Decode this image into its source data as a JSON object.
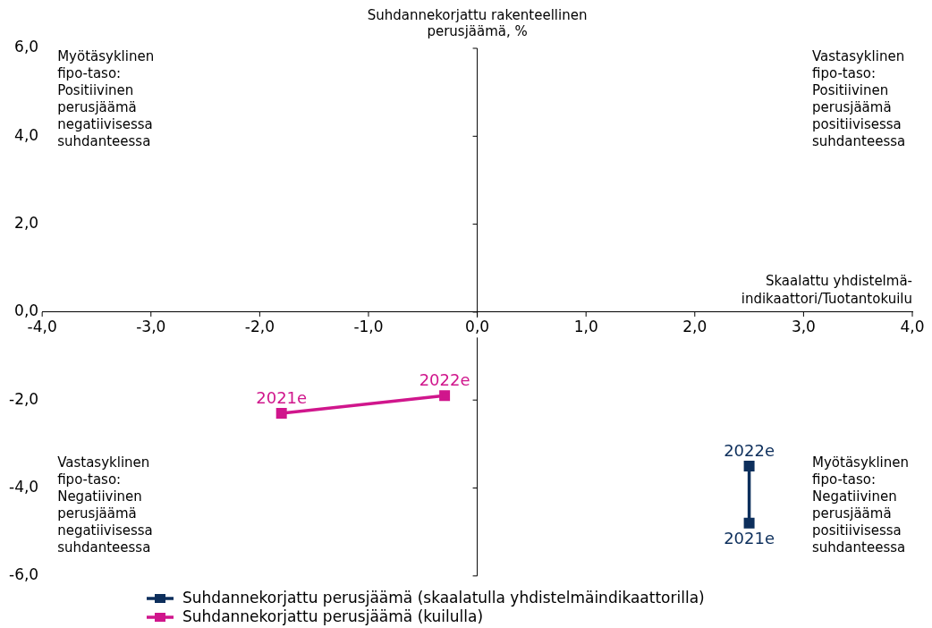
{
  "chart_data": {
    "type": "line",
    "xlabel": "Skaalattu yhdistelmä-indikaattori/Tuotantokuilu",
    "ylabel": "Suhdannekorjattu rakenteellinen perusjäämä, %",
    "xlim": [
      -4,
      4
    ],
    "xticks": [
      {
        "value": -4,
        "label": "-4,0"
      },
      {
        "value": -3,
        "label": "-3,0"
      },
      {
        "value": -2,
        "label": "-2,0"
      },
      {
        "value": -1,
        "label": "-1,0"
      },
      {
        "value": 0,
        "label": "0,0"
      },
      {
        "value": 1,
        "label": "1,0"
      },
      {
        "value": 2,
        "label": "2,0"
      },
      {
        "value": 3,
        "label": "3,0"
      },
      {
        "value": 4,
        "label": "4,0"
      }
    ],
    "ylim": [
      -6,
      6
    ],
    "yticks": [
      {
        "value": -6,
        "label": "-6,0"
      },
      {
        "value": -4,
        "label": "-4,0"
      },
      {
        "value": -2,
        "label": "-2,0"
      },
      {
        "value": 0,
        "label": "0,0"
      },
      {
        "value": 2,
        "label": "2,0"
      },
      {
        "value": 4,
        "label": "4,0"
      },
      {
        "value": 6,
        "label": "6,0"
      }
    ],
    "legend": "bottom",
    "marker": "square",
    "line_style": "solid",
    "series": [
      {
        "name": "Suhdannekorjattu perusjäämä (skaalatulla yhdistelmäindikaattorilla)",
        "color": "#0d2f5c",
        "x": [
          2.5,
          2.5
        ],
        "values": [
          -4.8,
          -3.5
        ]
      },
      {
        "name": "Suhdannekorjattu perusjäämä (kuilulla)",
        "color": "#d0168c",
        "x": [
          -1.8,
          -0.3
        ],
        "values": [
          -2.3,
          -1.9
        ]
      }
    ],
    "annotations": [
      {
        "text": "2021e",
        "x": 2.5,
        "y": -4.8
      },
      {
        "text": "2022e",
        "x": 2.5,
        "y": -3.5
      },
      {
        "text": "2021e",
        "x": -1.8,
        "y": -2.3
      },
      {
        "text": "2022e",
        "x": -0.3,
        "y": -1.9
      },
      "Myötäsyklinen fipo-taso: Positiivinen perusjäämä negatiivisessa suhdanteessa",
      "Vastasyklinen fipo-taso: Positiivinen perusjäämä positiivisessa suhdanteessa",
      "Vastasyklinen fipo-taso: Negatiivinen perusjäämä negatiivisessa suhdanteessa",
      "Myötäsyklinen fipo-taso: Negatiivinen perusjäämä positiivisessa suhdanteessa"
    ]
  }
}
